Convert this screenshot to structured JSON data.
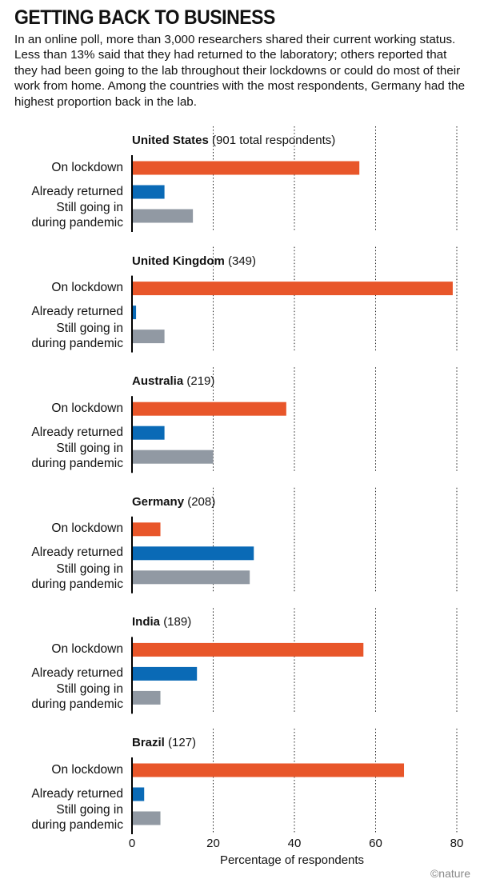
{
  "header": {
    "title": "GETTING BACK TO BUSINESS",
    "description": "In an online poll, more than 3,000 researchers shared their current working status. Less than 13% said that they had returned to the laboratory; others reported that they had been going to the lab throughout their lockdowns or could do most of their work from home. Among the countries with the most respondents, Germany had the highest proportion back in the lab."
  },
  "credit": "©nature",
  "chart_data": [
    {
      "type": "bar",
      "orientation": "horizontal",
      "title": "United States",
      "subtitle": "(901 total respondents)",
      "categories": [
        "On lockdown",
        "Already returned",
        "Still going in\nduring pandemic"
      ],
      "values": [
        56,
        8,
        15
      ],
      "colors": [
        "#e8562a",
        "#0a6ab6",
        "#9199a3"
      ],
      "xlim": [
        0,
        80
      ],
      "xticks": [
        0,
        20,
        40,
        60,
        80
      ],
      "grid": true
    },
    {
      "type": "bar",
      "orientation": "horizontal",
      "title": "United Kingdom",
      "subtitle": "(349)",
      "categories": [
        "On lockdown",
        "Already returned",
        "Still going in\nduring pandemic"
      ],
      "values": [
        79,
        1,
        8
      ],
      "colors": [
        "#e8562a",
        "#0a6ab6",
        "#9199a3"
      ],
      "xlim": [
        0,
        80
      ],
      "xticks": [
        0,
        20,
        40,
        60,
        80
      ],
      "grid": true
    },
    {
      "type": "bar",
      "orientation": "horizontal",
      "title": "Australia",
      "subtitle": "(219)",
      "categories": [
        "On lockdown",
        "Already returned",
        "Still going in\nduring pandemic"
      ],
      "values": [
        38,
        8,
        20
      ],
      "colors": [
        "#e8562a",
        "#0a6ab6",
        "#9199a3"
      ],
      "xlim": [
        0,
        80
      ],
      "xticks": [
        0,
        20,
        40,
        60,
        80
      ],
      "grid": true
    },
    {
      "type": "bar",
      "orientation": "horizontal",
      "title": "Germany",
      "subtitle": "(208)",
      "categories": [
        "On lockdown",
        "Already returned",
        "Still going in\nduring pandemic"
      ],
      "values": [
        7,
        30,
        29
      ],
      "colors": [
        "#e8562a",
        "#0a6ab6",
        "#9199a3"
      ],
      "xlim": [
        0,
        80
      ],
      "xticks": [
        0,
        20,
        40,
        60,
        80
      ],
      "grid": true
    },
    {
      "type": "bar",
      "orientation": "horizontal",
      "title": "India",
      "subtitle": "(189)",
      "categories": [
        "On lockdown",
        "Already returned",
        "Still going in\nduring pandemic"
      ],
      "values": [
        57,
        16,
        7
      ],
      "colors": [
        "#e8562a",
        "#0a6ab6",
        "#9199a3"
      ],
      "xlim": [
        0,
        80
      ],
      "xticks": [
        0,
        20,
        40,
        60,
        80
      ],
      "grid": true
    },
    {
      "type": "bar",
      "orientation": "horizontal",
      "title": "Brazil",
      "subtitle": "(127)",
      "categories": [
        "On lockdown",
        "Already returned",
        "Still going in\nduring pandemic"
      ],
      "values": [
        67,
        3,
        7
      ],
      "colors": [
        "#e8562a",
        "#0a6ab6",
        "#9199a3"
      ],
      "xlim": [
        0,
        80
      ],
      "xticks": [
        0,
        20,
        40,
        60,
        80
      ],
      "grid": true,
      "xlabel": "Percentage of respondents"
    }
  ]
}
